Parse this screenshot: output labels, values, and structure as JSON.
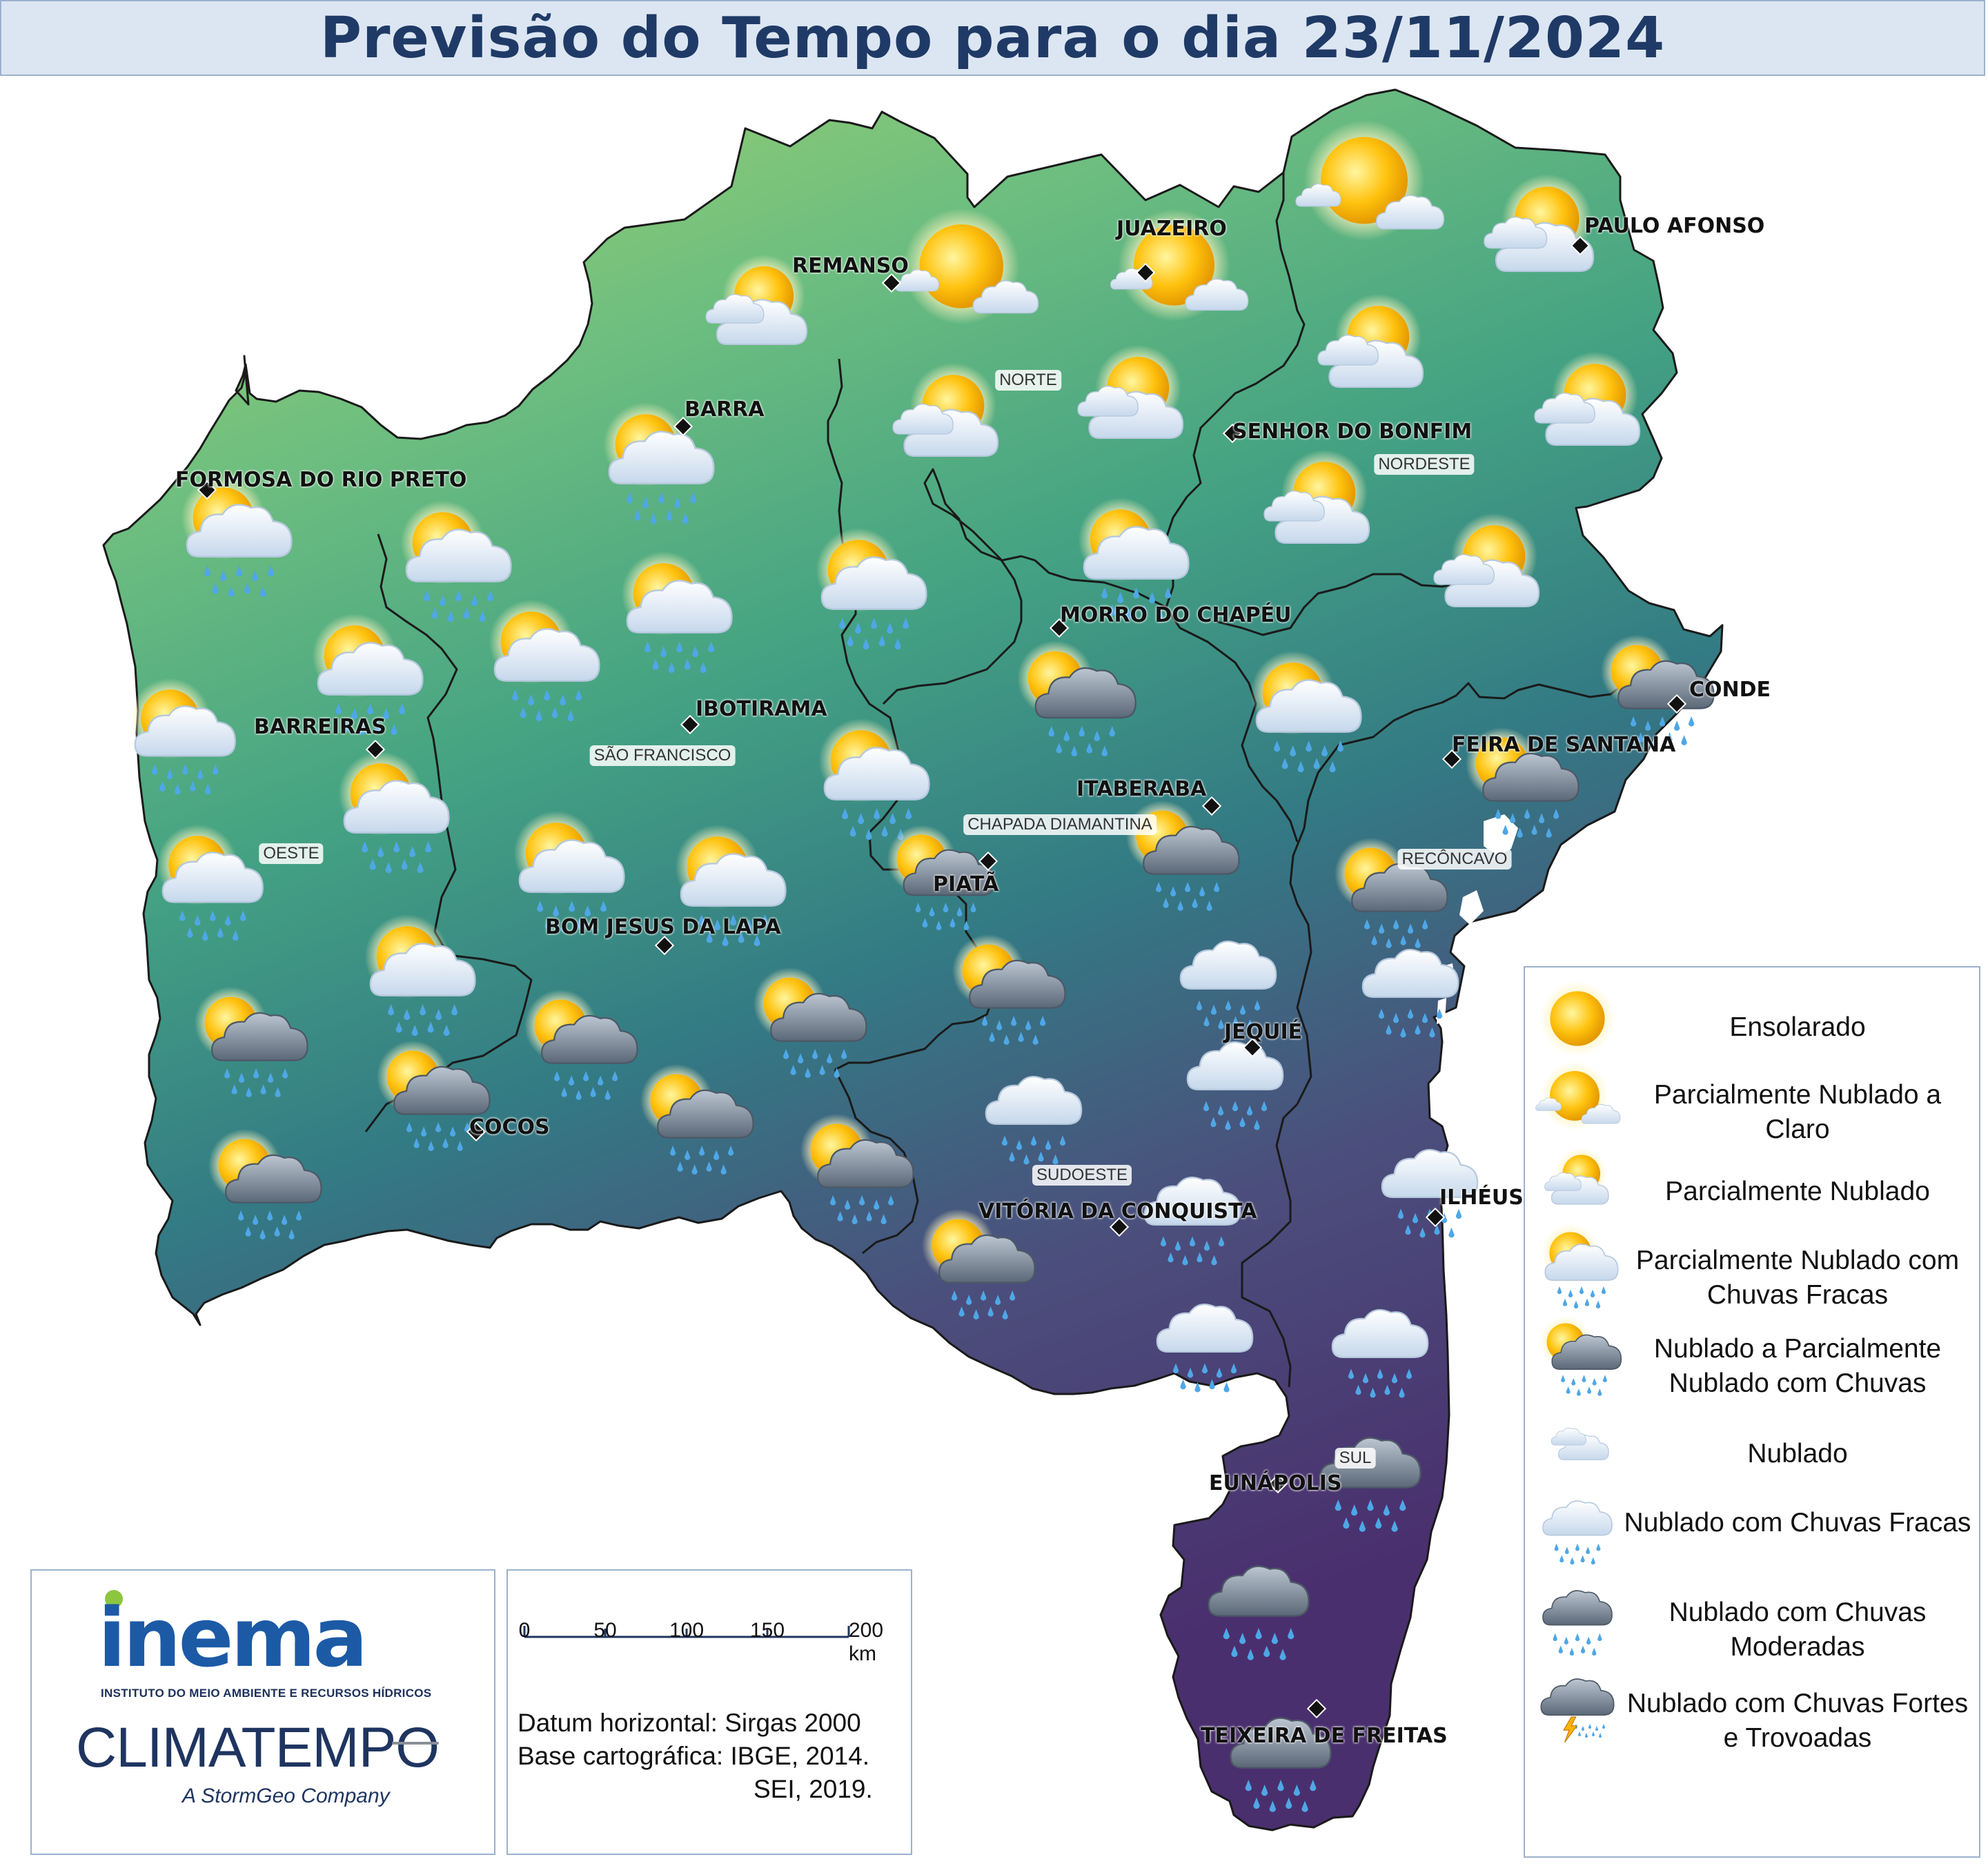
{
  "title": "Previsão do Tempo para o dia 23/11/2024",
  "cities": [
    {
      "name": "REMANSO"
    },
    {
      "name": "JUAZEIRO"
    },
    {
      "name": "PAULO AFONSO"
    },
    {
      "name": "BARRA"
    },
    {
      "name": "SENHOR DO BONFIM"
    },
    {
      "name": "FORMOSA DO RIO PRETO"
    },
    {
      "name": "MORRO DO CHAPÉU"
    },
    {
      "name": "CONDE"
    },
    {
      "name": "IBOTIRAMA"
    },
    {
      "name": "BARREIRAS"
    },
    {
      "name": "FEIRA DE SANTANA"
    },
    {
      "name": "ITABERABA"
    },
    {
      "name": "PIATÃ"
    },
    {
      "name": "BOM JESUS DA LAPA"
    },
    {
      "name": "JEQUIÉ"
    },
    {
      "name": "COCOS"
    },
    {
      "name": "ILHÉUS"
    },
    {
      "name": "VITÓRIA DA CONQUISTA"
    },
    {
      "name": "EUNÁPOLIS"
    },
    {
      "name": "TEIXEIRA DE FREITAS"
    }
  ],
  "regions": [
    "NORTE",
    "NORDESTE",
    "SÃO FRANCISCO",
    "OESTE",
    "CHAPADA DIAMANTINA",
    "RECÔNCAVO",
    "SUDOESTE",
    "SUL"
  ],
  "legend": [
    {
      "label": "Ensolarado",
      "icon": "sunny-icon"
    },
    {
      "label": "Parcialmente Nublado a Claro",
      "icon": "mostly-clear-icon"
    },
    {
      "label": "Parcialmente Nublado",
      "icon": "partly-cloudy-icon"
    },
    {
      "label": "Parcialmente Nublado com Chuvas Fracas",
      "icon": "partly-cloudy-light-rain-icon"
    },
    {
      "label": "Nublado a Parcialmente Nublado com Chuvas",
      "icon": "cloudy-sun-rain-icon"
    },
    {
      "label": "Nublado",
      "icon": "cloudy-icon"
    },
    {
      "label": "Nublado com Chuvas Fracas",
      "icon": "cloudy-light-rain-icon"
    },
    {
      "label": "Nublado com Chuvas Moderadas",
      "icon": "cloudy-moderate-rain-icon"
    },
    {
      "label": "Nublado com Chuvas Fortes e Trovoadas",
      "icon": "storm-icon"
    }
  ],
  "scale": {
    "ticks": [
      "0",
      "50",
      "100",
      "150",
      "200 km"
    ]
  },
  "datum": {
    "line1": "Datum horizontal: Sirgas 2000",
    "line2": "Base cartográfica: IBGE, 2014.",
    "line3": "SEI, 2019."
  },
  "logos": {
    "inema": "inema",
    "inema_subtitle": "INSTITUTO DO MEIO AMBIENTE E RECURSOS HÍDRICOS",
    "climatempo": "CLIMATEMPO",
    "climatempo_tagline": "A StormGeo Company"
  },
  "colors": {
    "title": "#1f3a66",
    "map_north": "#9fd06a",
    "map_mid": "#3f9a86",
    "map_south": "#4a2f6e",
    "border": "#9bb2cc"
  }
}
